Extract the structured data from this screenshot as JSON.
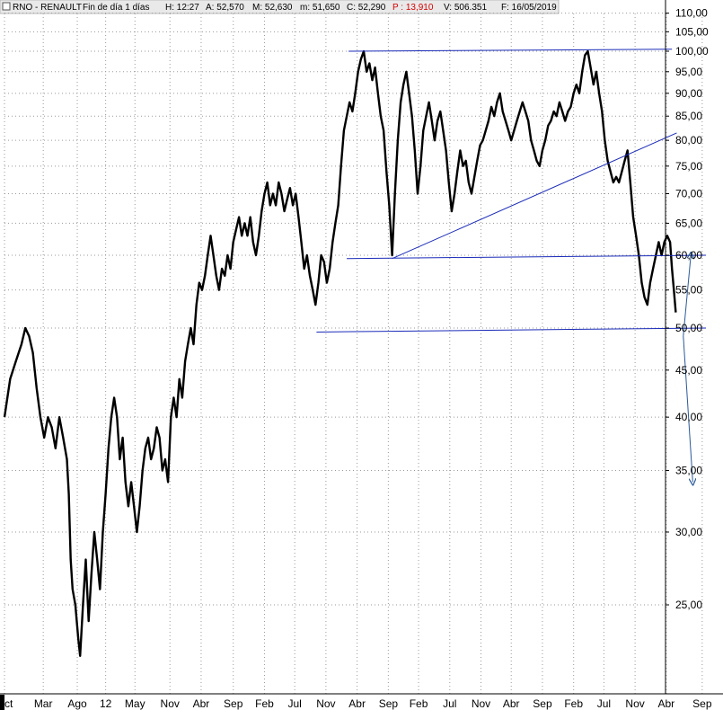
{
  "header": {
    "symbol": "RNO - RENAULT",
    "period": "Fin de día 1 días",
    "hour": "H: 12:27",
    "open": "A: 52,570",
    "high": "M: 52,630",
    "low": "m: 51,650",
    "close": "C: 52,290",
    "change": "P : 13,910",
    "volume": "V: 506.351",
    "date": "F: 16/05/2019"
  },
  "colors": {
    "price": "#000000",
    "trendline": "#1a2bb8",
    "arrow": "#2a5a9a",
    "grid": "#9a9a9a",
    "change": "#d40000"
  },
  "chart_data": {
    "type": "line",
    "scale": "log",
    "ylim": [
      21,
      110
    ],
    "y_ticks": [
      "110,00",
      "105,00",
      "100,00",
      "95,00",
      "90,00",
      "85,00",
      "80,00",
      "75,00",
      "70,00",
      "65,00",
      "60,00",
      "55,00",
      "50,00",
      "45,00",
      "40,00",
      "35,00",
      "30,00",
      "25,00"
    ],
    "x_ticks": [
      "Oct",
      "Mar",
      "Ago",
      "12",
      "May",
      "Nov",
      "Abr",
      "Sep",
      "Feb",
      "Jul",
      "Nov",
      "Abr",
      "Sep",
      "Feb",
      "Jul",
      "Nov",
      "Abr",
      "Sep",
      "Feb",
      "Jul",
      "Nov",
      "Abr",
      "Sep"
    ],
    "x_tick_index": [
      0,
      41,
      77,
      107,
      138,
      175,
      208,
      242,
      275,
      307,
      340,
      373,
      406,
      438,
      471,
      504,
      536,
      569,
      602,
      634,
      667,
      700,
      738
    ],
    "grid": true,
    "series": [
      {
        "points": [
          [
            0,
            40
          ],
          [
            6,
            44
          ],
          [
            12,
            46
          ],
          [
            18,
            48
          ],
          [
            22,
            50
          ],
          [
            26,
            49
          ],
          [
            30,
            47
          ],
          [
            34,
            43
          ],
          [
            38,
            40
          ],
          [
            42,
            38
          ],
          [
            46,
            40
          ],
          [
            50,
            39
          ],
          [
            54,
            37
          ],
          [
            58,
            40
          ],
          [
            62,
            38
          ],
          [
            66,
            36
          ],
          [
            68,
            33
          ],
          [
            70,
            28
          ],
          [
            72,
            26
          ],
          [
            75,
            25
          ],
          [
            78,
            23
          ],
          [
            80,
            22
          ],
          [
            83,
            25
          ],
          [
            86,
            28
          ],
          [
            89,
            24
          ],
          [
            92,
            27
          ],
          [
            95,
            30
          ],
          [
            98,
            28
          ],
          [
            101,
            26
          ],
          [
            104,
            30
          ],
          [
            107,
            33
          ],
          [
            110,
            37
          ],
          [
            113,
            40
          ],
          [
            116,
            42
          ],
          [
            119,
            40
          ],
          [
            122,
            36
          ],
          [
            125,
            38
          ],
          [
            128,
            34
          ],
          [
            131,
            32
          ],
          [
            134,
            34
          ],
          [
            137,
            32
          ],
          [
            140,
            30
          ],
          [
            143,
            32
          ],
          [
            146,
            35
          ],
          [
            149,
            37
          ],
          [
            152,
            38
          ],
          [
            155,
            36
          ],
          [
            158,
            37
          ],
          [
            161,
            39
          ],
          [
            164,
            38
          ],
          [
            167,
            35
          ],
          [
            170,
            36
          ],
          [
            173,
            34
          ],
          [
            176,
            40
          ],
          [
            179,
            42
          ],
          [
            182,
            40
          ],
          [
            185,
            44
          ],
          [
            188,
            42
          ],
          [
            191,
            46
          ],
          [
            194,
            48
          ],
          [
            197,
            50
          ],
          [
            200,
            48
          ],
          [
            203,
            53
          ],
          [
            206,
            56
          ],
          [
            209,
            55
          ],
          [
            212,
            57
          ],
          [
            215,
            60
          ],
          [
            218,
            63
          ],
          [
            221,
            60
          ],
          [
            224,
            57
          ],
          [
            227,
            55
          ],
          [
            230,
            58
          ],
          [
            233,
            57
          ],
          [
            236,
            60
          ],
          [
            239,
            58
          ],
          [
            242,
            62
          ],
          [
            245,
            64
          ],
          [
            248,
            66
          ],
          [
            251,
            63
          ],
          [
            254,
            65
          ],
          [
            257,
            63
          ],
          [
            260,
            66
          ],
          [
            263,
            62
          ],
          [
            266,
            60
          ],
          [
            269,
            63
          ],
          [
            272,
            67
          ],
          [
            275,
            70
          ],
          [
            278,
            72
          ],
          [
            281,
            68
          ],
          [
            284,
            70
          ],
          [
            287,
            68
          ],
          [
            290,
            72
          ],
          [
            293,
            70
          ],
          [
            296,
            67
          ],
          [
            299,
            69
          ],
          [
            302,
            71
          ],
          [
            305,
            68
          ],
          [
            308,
            70
          ],
          [
            311,
            66
          ],
          [
            314,
            62
          ],
          [
            317,
            58
          ],
          [
            320,
            60
          ],
          [
            323,
            57
          ],
          [
            326,
            55
          ],
          [
            329,
            53
          ],
          [
            332,
            56
          ],
          [
            335,
            60
          ],
          [
            338,
            59
          ],
          [
            341,
            56
          ],
          [
            344,
            58
          ],
          [
            347,
            62
          ],
          [
            350,
            65
          ],
          [
            353,
            68
          ],
          [
            356,
            75
          ],
          [
            359,
            82
          ],
          [
            362,
            85
          ],
          [
            365,
            88
          ],
          [
            368,
            86
          ],
          [
            371,
            90
          ],
          [
            374,
            95
          ],
          [
            377,
            98
          ],
          [
            380,
            100
          ],
          [
            383,
            95
          ],
          [
            386,
            97
          ],
          [
            389,
            93
          ],
          [
            392,
            96
          ],
          [
            395,
            90
          ],
          [
            398,
            85
          ],
          [
            401,
            82
          ],
          [
            404,
            74
          ],
          [
            407,
            68
          ],
          [
            410,
            60
          ],
          [
            413,
            70
          ],
          [
            416,
            80
          ],
          [
            419,
            88
          ],
          [
            422,
            92
          ],
          [
            425,
            95
          ],
          [
            428,
            90
          ],
          [
            431,
            85
          ],
          [
            434,
            78
          ],
          [
            437,
            70
          ],
          [
            440,
            75
          ],
          [
            443,
            82
          ],
          [
            446,
            85
          ],
          [
            449,
            88
          ],
          [
            452,
            84
          ],
          [
            455,
            80
          ],
          [
            458,
            84
          ],
          [
            461,
            86
          ],
          [
            464,
            82
          ],
          [
            467,
            78
          ],
          [
            470,
            72
          ],
          [
            473,
            67
          ],
          [
            476,
            70
          ],
          [
            479,
            74
          ],
          [
            482,
            78
          ],
          [
            485,
            75
          ],
          [
            488,
            76
          ],
          [
            491,
            72
          ],
          [
            494,
            70
          ],
          [
            497,
            73
          ],
          [
            500,
            76
          ],
          [
            503,
            79
          ],
          [
            506,
            80
          ],
          [
            509,
            82
          ],
          [
            512,
            84
          ],
          [
            515,
            87
          ],
          [
            518,
            85
          ],
          [
            521,
            88
          ],
          [
            524,
            90
          ],
          [
            527,
            86
          ],
          [
            530,
            84
          ],
          [
            533,
            82
          ],
          [
            536,
            80
          ],
          [
            539,
            82
          ],
          [
            542,
            84
          ],
          [
            545,
            86
          ],
          [
            548,
            88
          ],
          [
            551,
            86
          ],
          [
            554,
            84
          ],
          [
            557,
            80
          ],
          [
            560,
            78
          ],
          [
            563,
            76
          ],
          [
            566,
            75
          ],
          [
            569,
            78
          ],
          [
            572,
            80
          ],
          [
            575,
            83
          ],
          [
            578,
            84
          ],
          [
            581,
            86
          ],
          [
            584,
            85
          ],
          [
            587,
            88
          ],
          [
            590,
            86
          ],
          [
            593,
            84
          ],
          [
            596,
            86
          ],
          [
            599,
            87
          ],
          [
            602,
            90
          ],
          [
            605,
            92
          ],
          [
            608,
            90
          ],
          [
            611,
            95
          ],
          [
            614,
            99
          ],
          [
            617,
            100
          ],
          [
            620,
            96
          ],
          [
            623,
            92
          ],
          [
            626,
            95
          ],
          [
            629,
            90
          ],
          [
            632,
            86
          ],
          [
            635,
            80
          ],
          [
            638,
            76
          ],
          [
            641,
            74
          ],
          [
            644,
            72
          ],
          [
            647,
            73
          ],
          [
            650,
            72
          ],
          [
            653,
            74
          ],
          [
            656,
            76
          ],
          [
            659,
            78
          ],
          [
            662,
            72
          ],
          [
            665,
            66
          ],
          [
            668,
            63
          ],
          [
            671,
            60
          ],
          [
            674,
            56
          ],
          [
            677,
            54
          ],
          [
            680,
            53
          ],
          [
            683,
            56
          ],
          [
            686,
            58
          ],
          [
            689,
            60
          ],
          [
            692,
            62
          ],
          [
            695,
            60
          ],
          [
            698,
            62
          ],
          [
            701,
            63
          ],
          [
            704,
            62
          ],
          [
            706,
            58
          ],
          [
            708,
            55
          ],
          [
            710,
            52
          ]
        ]
      }
    ],
    "annotations": {
      "resistance_line": [
        [
          364,
          100
        ],
        [
          706,
          100.5
        ]
      ],
      "uptrend_line": [
        [
          410,
          59.5
        ],
        [
          711,
          81.5
        ]
      ],
      "neckline": [
        [
          362,
          59.5
        ],
        [
          742,
          60
        ]
      ],
      "support_line": [
        [
          330,
          49.5
        ],
        [
          742,
          50
        ]
      ],
      "arrow_up": [
        [
          718,
          49
        ],
        [
          726,
          60
        ]
      ],
      "arrow_down": [
        [
          718,
          49
        ],
        [
          728,
          34
        ]
      ]
    }
  }
}
